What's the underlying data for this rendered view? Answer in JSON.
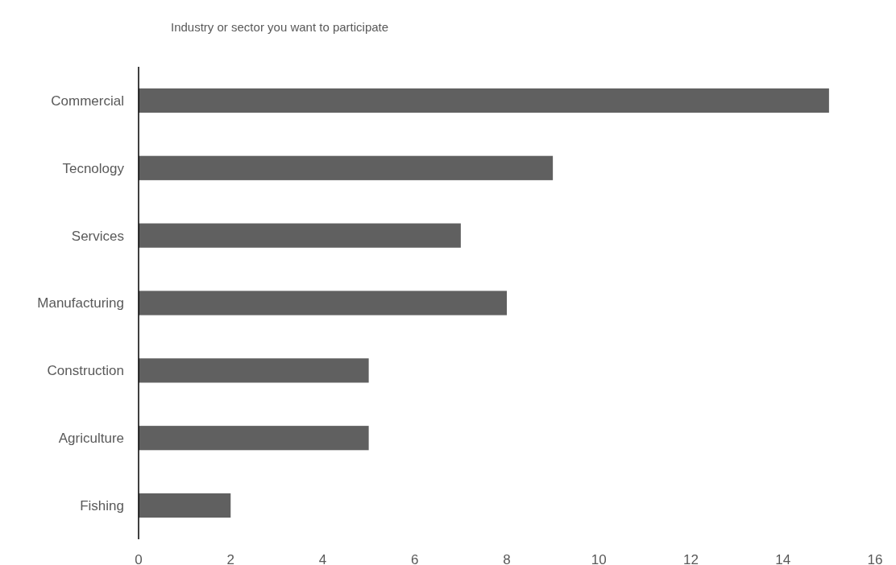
{
  "chart_data": {
    "type": "bar",
    "orientation": "horizontal",
    "title": "Industry or sector you want to participate",
    "categories": [
      "Commercial",
      "Tecnology",
      "Services",
      "Manufacturing",
      "Construction",
      "Agriculture",
      "Fishing"
    ],
    "values": [
      15,
      9,
      7,
      8,
      5,
      5,
      2
    ],
    "color": "#606060",
    "xlim": [
      0,
      16
    ],
    "xticks": [
      0,
      2,
      4,
      6,
      8,
      10,
      12,
      14,
      16
    ]
  }
}
